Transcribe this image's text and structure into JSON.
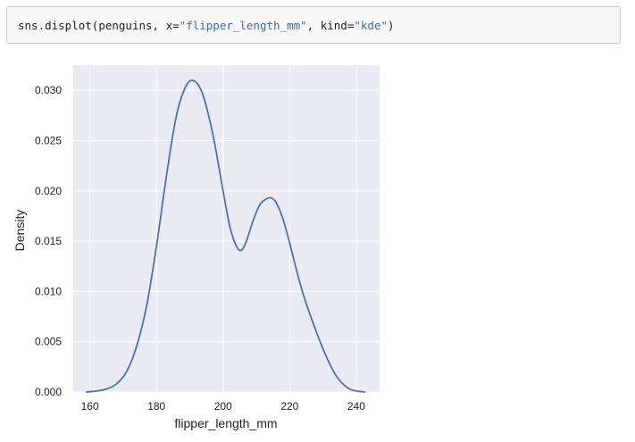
{
  "code_cell": {
    "func": "sns.displot",
    "arg_data": "penguins",
    "arg_x_key": "x",
    "arg_x_value": "\"flipper_length_mm\"",
    "arg_kind_key": "kind",
    "arg_kind_value": "\"kde\""
  },
  "chart_data": {
    "type": "line",
    "kind": "kde",
    "xlabel": "flipper_length_mm",
    "ylabel": "Density",
    "xlim": [
      155,
      247
    ],
    "ylim": [
      0,
      0.0325
    ],
    "xticks": [
      160,
      180,
      200,
      220,
      240
    ],
    "xtick_labels": [
      "160",
      "180",
      "200",
      "220",
      "240"
    ],
    "yticks": [
      0.0,
      0.005,
      0.01,
      0.015,
      0.02,
      0.025,
      0.03
    ],
    "ytick_labels": [
      "0.000",
      "0.005",
      "0.010",
      "0.015",
      "0.020",
      "0.025",
      "0.030"
    ],
    "grid": true,
    "background": "#eaeaf2",
    "line_color": "#4c72b0",
    "series": [
      {
        "x": [
          159,
          162,
          165,
          168,
          171,
          174,
          177,
          180,
          183,
          186,
          189,
          191.5,
          194,
          197,
          200,
          202,
          204,
          205.5,
          207,
          209,
          211,
          213,
          214.5,
          216,
          218,
          220,
          222,
          224,
          226,
          228,
          230,
          232,
          234,
          236,
          238,
          240,
          242.5
        ],
        "y": [
          0.0,
          0.0001,
          0.0003,
          0.0008,
          0.002,
          0.0045,
          0.0085,
          0.0145,
          0.0215,
          0.0275,
          0.0305,
          0.0309,
          0.0295,
          0.0255,
          0.02,
          0.0165,
          0.0145,
          0.0141,
          0.015,
          0.017,
          0.0186,
          0.0192,
          0.0193,
          0.0188,
          0.0172,
          0.0148,
          0.0122,
          0.0098,
          0.0078,
          0.006,
          0.0043,
          0.0028,
          0.0016,
          0.0008,
          0.0003,
          0.0001,
          0.0
        ]
      }
    ]
  }
}
